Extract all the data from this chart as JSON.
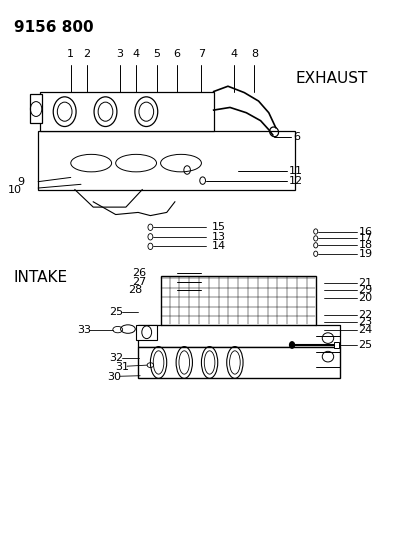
{
  "title": "9156 800",
  "exhaust_label": "EXHAUST",
  "intake_label": "INTAKE",
  "background_color": "#ffffff",
  "line_color": "#000000",
  "text_color": "#000000",
  "title_fontsize": 11,
  "label_fontsize": 9,
  "callout_fontsize": 8,
  "fig_width": 4.11,
  "fig_height": 5.33,
  "dpi": 100
}
